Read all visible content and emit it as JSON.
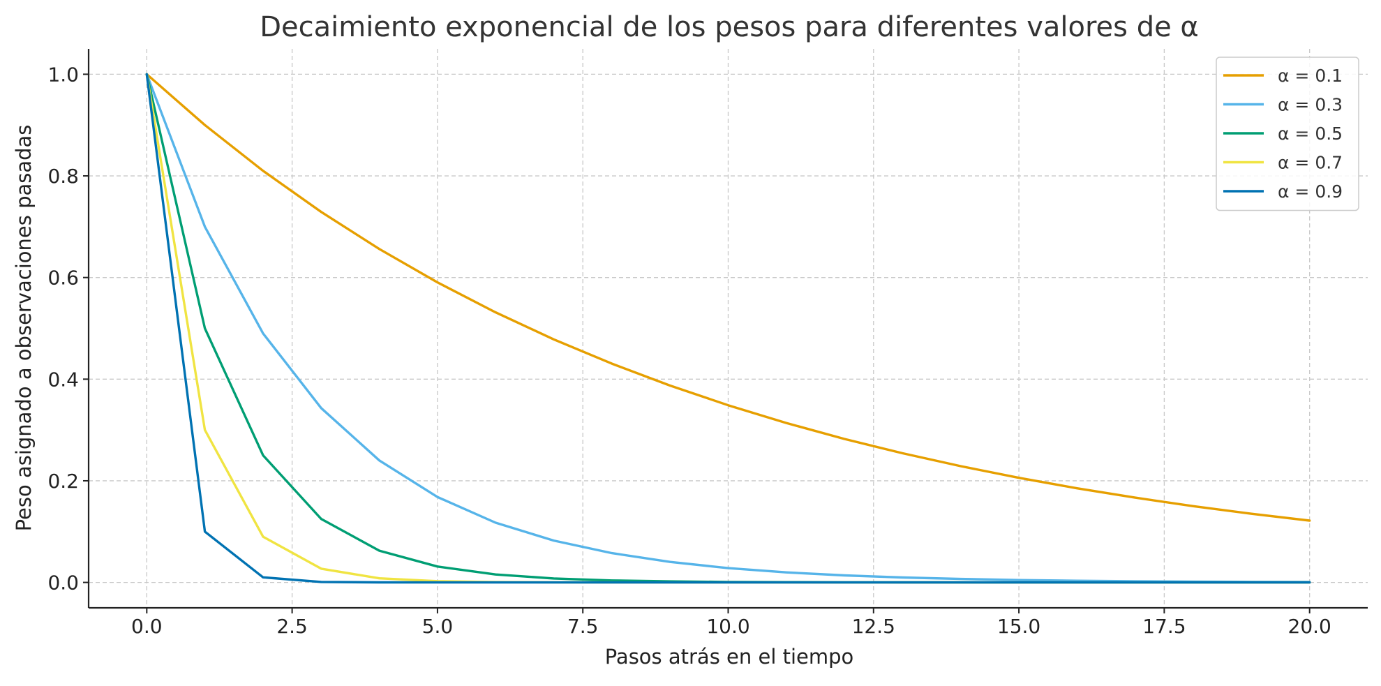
{
  "chart_data": {
    "type": "line",
    "title": "Decaimiento exponencial de los pesos para diferentes valores de α",
    "xlabel": "Pasos atrás en el tiempo",
    "ylabel": "Peso asignado a observaciones pasadas",
    "xlim": [
      -1,
      21
    ],
    "ylim": [
      -0.05,
      1.05
    ],
    "x_ticks": [
      "0.0",
      "2.5",
      "5.0",
      "7.5",
      "10.0",
      "12.5",
      "15.0",
      "17.5",
      "20.0"
    ],
    "y_ticks": [
      "0.0",
      "0.2",
      "0.4",
      "0.6",
      "0.8",
      "1.0"
    ],
    "grid": true,
    "legend_position": "top-right",
    "x": [
      0,
      1,
      2,
      3,
      4,
      5,
      6,
      7,
      8,
      9,
      10,
      11,
      12,
      13,
      14,
      15,
      16,
      17,
      18,
      19,
      20
    ],
    "series": [
      {
        "name": "α = 0.1",
        "color": "#E69F00",
        "values": [
          1.0,
          0.9,
          0.81,
          0.729,
          0.6561,
          0.5905,
          0.5314,
          0.4783,
          0.4305,
          0.3874,
          0.3487,
          0.3138,
          0.2824,
          0.2542,
          0.2288,
          0.2059,
          0.1853,
          0.1668,
          0.1501,
          0.1351,
          0.1216
        ]
      },
      {
        "name": "α = 0.3",
        "color": "#56B4E9",
        "values": [
          1.0,
          0.7,
          0.49,
          0.343,
          0.2401,
          0.1681,
          0.1176,
          0.0824,
          0.0576,
          0.0404,
          0.0282,
          0.0198,
          0.0138,
          0.0097,
          0.0068,
          0.0047,
          0.0033,
          0.0023,
          0.0016,
          0.0011,
          0.0008
        ]
      },
      {
        "name": "α = 0.5",
        "color": "#009E73",
        "values": [
          1.0,
          0.5,
          0.25,
          0.125,
          0.0625,
          0.0313,
          0.0156,
          0.0078,
          0.0039,
          0.002,
          0.001,
          0.0005,
          0.0002,
          0.0001,
          0.0001,
          0.0,
          0.0,
          0.0,
          0.0,
          0.0,
          0.0
        ]
      },
      {
        "name": "α = 0.7",
        "color": "#F0E442",
        "values": [
          1.0,
          0.3,
          0.09,
          0.027,
          0.0081,
          0.0024,
          0.0007,
          0.0002,
          0.0001,
          0.0,
          0.0,
          0.0,
          0.0,
          0.0,
          0.0,
          0.0,
          0.0,
          0.0,
          0.0,
          0.0,
          0.0
        ]
      },
      {
        "name": "α = 0.9",
        "color": "#0072B2",
        "values": [
          1.0,
          0.1,
          0.01,
          0.001,
          0.0001,
          0.0,
          0.0,
          0.0,
          0.0,
          0.0,
          0.0,
          0.0,
          0.0,
          0.0,
          0.0,
          0.0,
          0.0,
          0.0,
          0.0,
          0.0,
          0.0
        ]
      }
    ]
  }
}
